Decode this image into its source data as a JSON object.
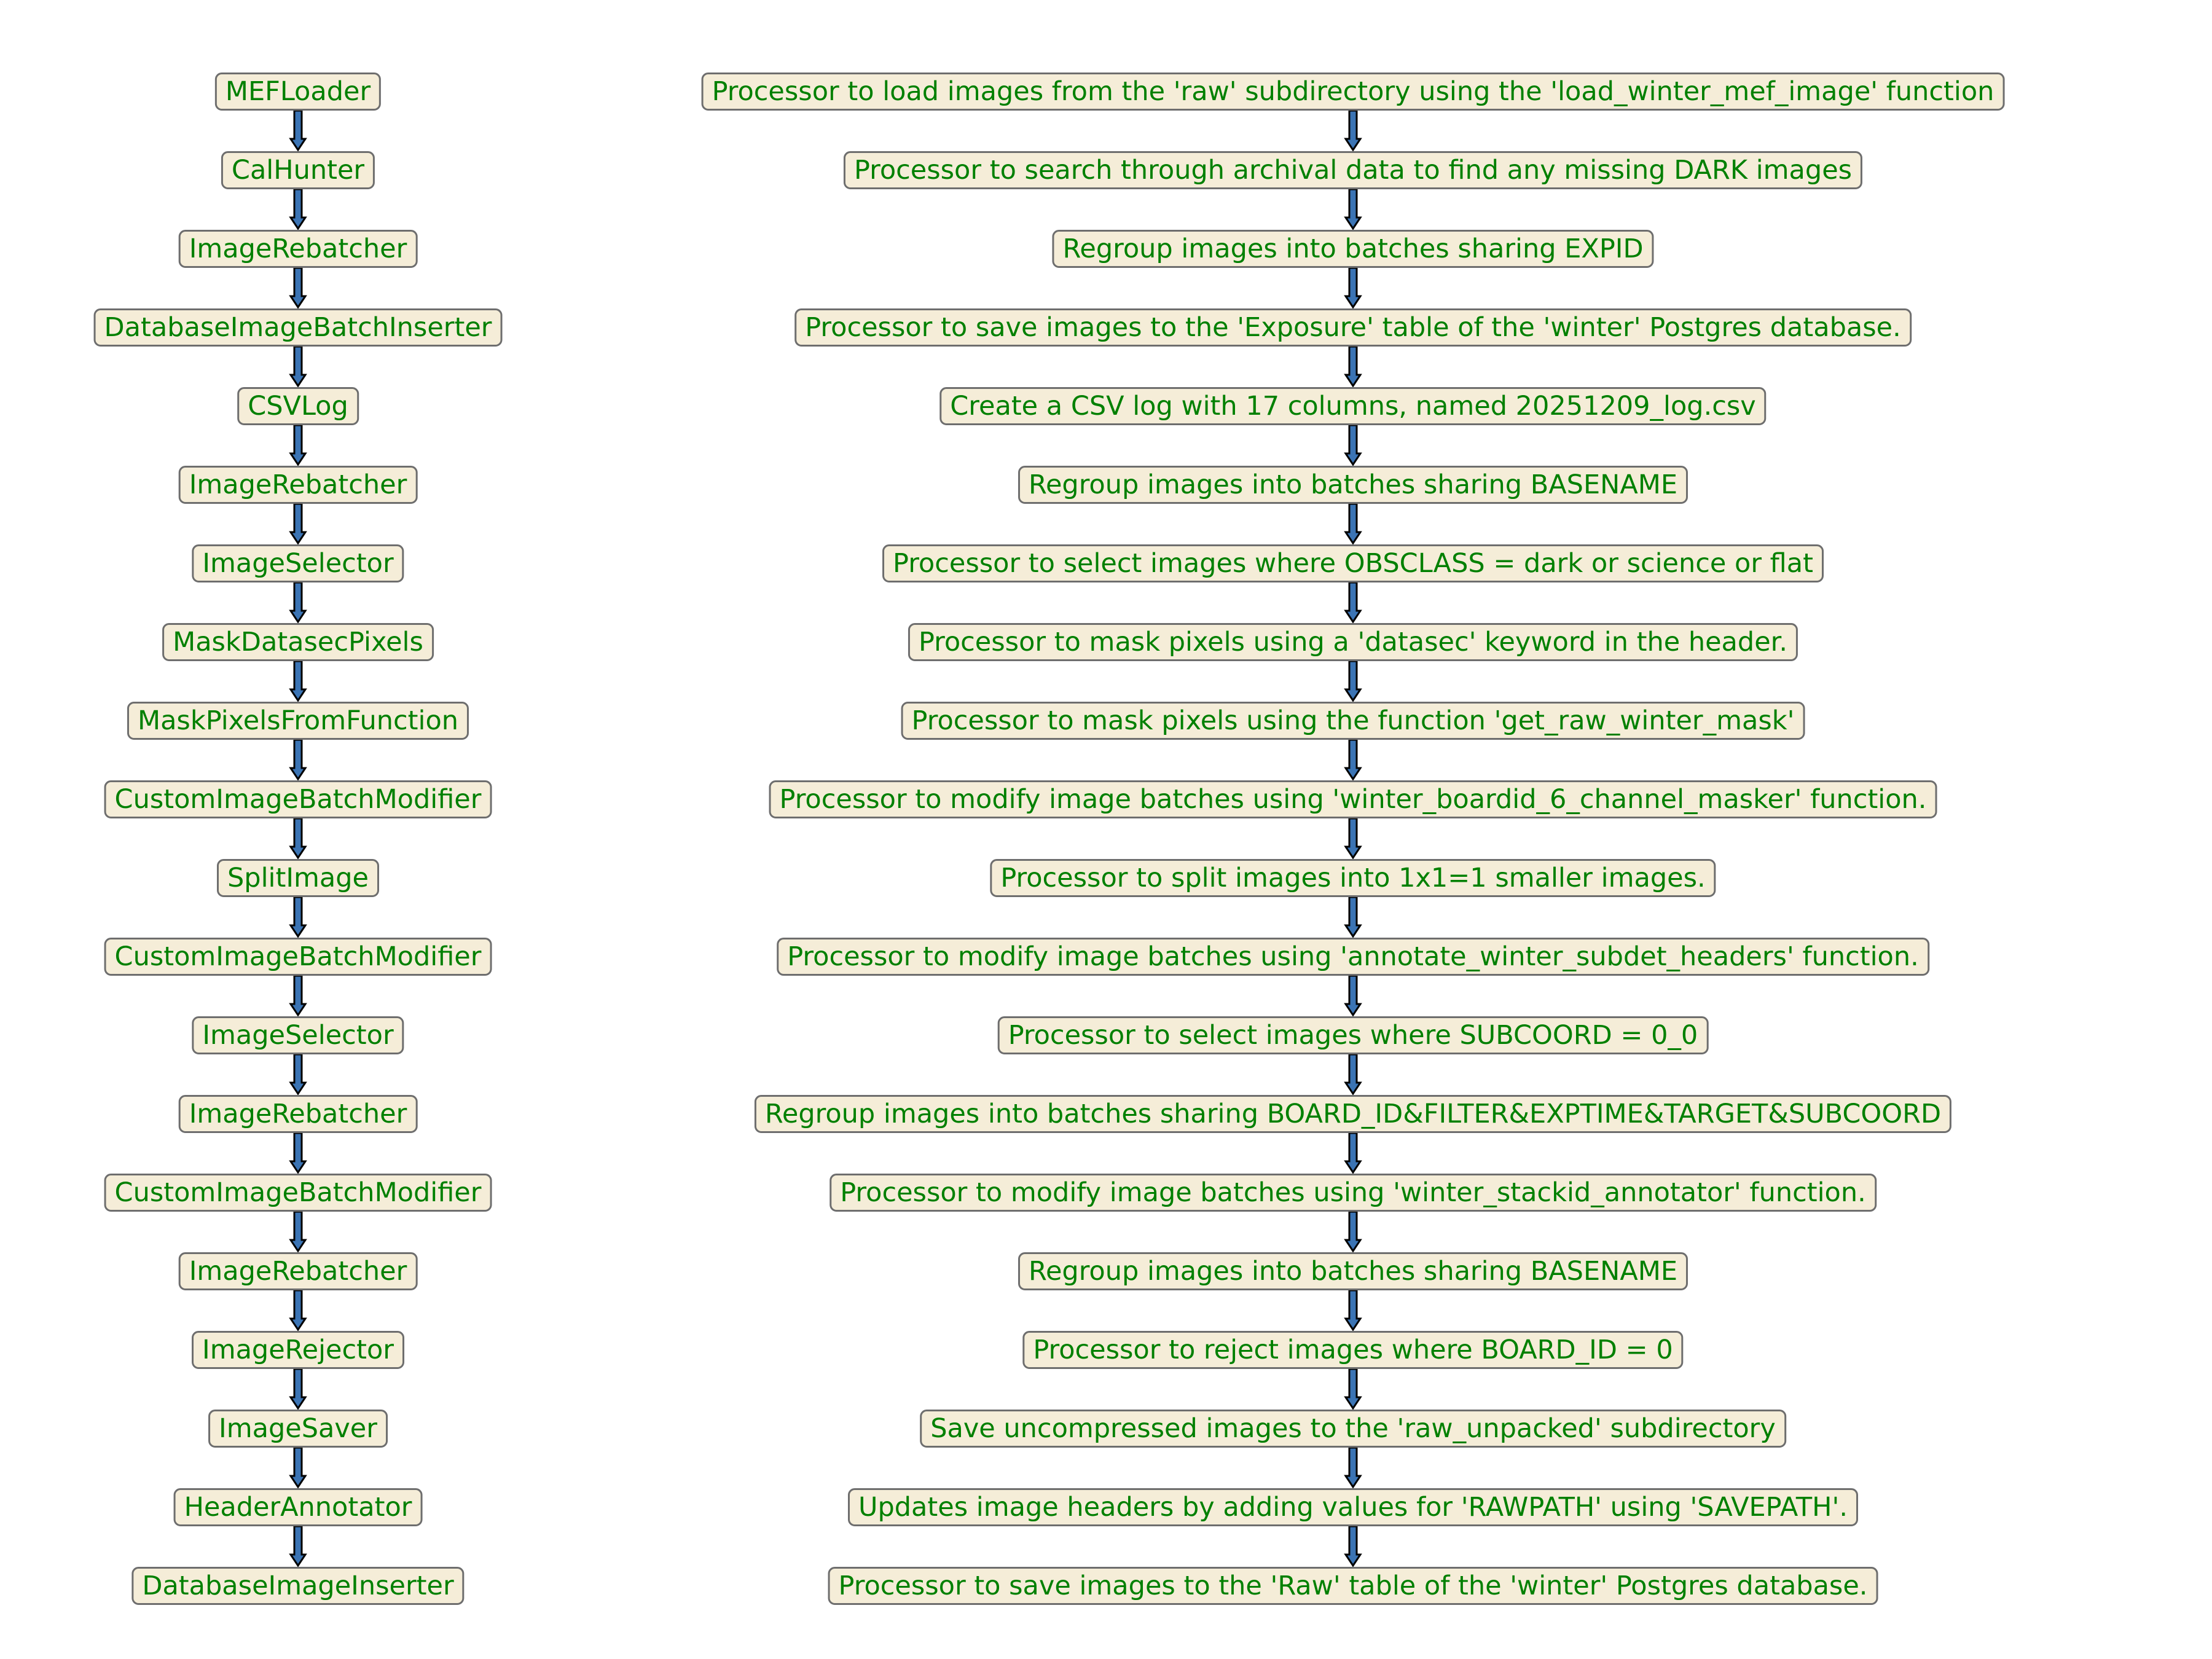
{
  "colors": {
    "text": "#008000",
    "box_fill": "#f5edd8",
    "box_border": "#6e6e6e",
    "arrow_fill": "#3b74b4",
    "arrow_stroke": "#000000"
  },
  "pipeline": {
    "steps": [
      {
        "name": "MEFLoader",
        "description": "Processor to load images from the 'raw' subdirectory using the 'load_winter_mef_image' function"
      },
      {
        "name": "CalHunter",
        "description": "Processor to search through archival data to find any missing DARK images"
      },
      {
        "name": "ImageRebatcher",
        "description": "Regroup images into batches sharing EXPID"
      },
      {
        "name": "DatabaseImageBatchInserter",
        "description": "Processor to save images to the 'Exposure' table of the 'winter' Postgres database."
      },
      {
        "name": "CSVLog",
        "description": "Create a CSV log with 17 columns, named 20251209_log.csv"
      },
      {
        "name": "ImageRebatcher",
        "description": "Regroup images into batches sharing BASENAME"
      },
      {
        "name": "ImageSelector",
        "description": "Processor to select images where OBSCLASS = dark or science or flat"
      },
      {
        "name": "MaskDatasecPixels",
        "description": "Processor to mask pixels using a 'datasec' keyword in the header."
      },
      {
        "name": "MaskPixelsFromFunction",
        "description": "Processor to mask pixels using the function 'get_raw_winter_mask'"
      },
      {
        "name": "CustomImageBatchModifier",
        "description": "Processor to modify image batches using 'winter_boardid_6_channel_masker' function."
      },
      {
        "name": "SplitImage",
        "description": "Processor to split images into 1x1=1 smaller images."
      },
      {
        "name": "CustomImageBatchModifier",
        "description": "Processor to modify image batches using 'annotate_winter_subdet_headers' function."
      },
      {
        "name": "ImageSelector",
        "description": "Processor to select images where SUBCOORD = 0_0"
      },
      {
        "name": "ImageRebatcher",
        "description": "Regroup images into batches sharing BOARD_ID&FILTER&EXPTIME&TARGET&SUBCOORD"
      },
      {
        "name": "CustomImageBatchModifier",
        "description": "Processor to modify image batches using 'winter_stackid_annotator' function."
      },
      {
        "name": "ImageRebatcher",
        "description": "Regroup images into batches sharing BASENAME"
      },
      {
        "name": "ImageRejector",
        "description": "Processor to reject images where BOARD_ID = 0"
      },
      {
        "name": "ImageSaver",
        "description": "Save uncompressed images to the 'raw_unpacked' subdirectory"
      },
      {
        "name": "HeaderAnnotator",
        "description": "Updates image headers by adding values for 'RAWPATH' using 'SAVEPATH'."
      },
      {
        "name": "DatabaseImageInserter",
        "description": "Processor to save images to the 'Raw' table of the 'winter' Postgres database."
      }
    ]
  }
}
